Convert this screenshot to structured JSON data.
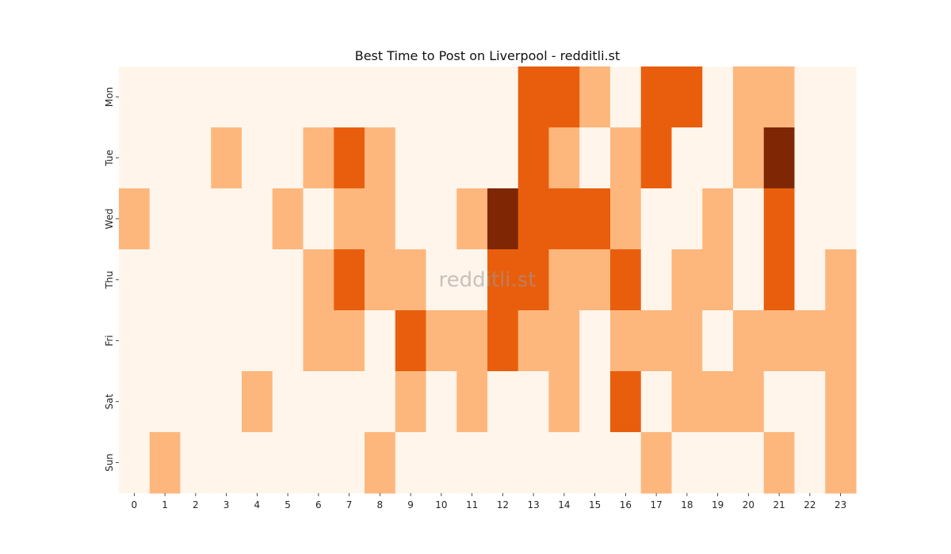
{
  "chart_data": {
    "type": "heatmap",
    "title": "Best Time to Post on Liverpool - redditli.st",
    "watermark": "redditli.st",
    "x_categories": [
      "0",
      "1",
      "2",
      "3",
      "4",
      "5",
      "6",
      "7",
      "8",
      "9",
      "10",
      "11",
      "12",
      "13",
      "14",
      "15",
      "16",
      "17",
      "18",
      "19",
      "20",
      "21",
      "22",
      "23"
    ],
    "y_categories": [
      "Mon",
      "Tue",
      "Wed",
      "Thu",
      "Fri",
      "Sat",
      "Sun"
    ],
    "colorscale": [
      "#fff5eb",
      "#fdb77d",
      "#e95e0d",
      "#7f2704"
    ],
    "values": [
      [
        0,
        0,
        0,
        0,
        0,
        0,
        0,
        0,
        0,
        0,
        0,
        0,
        0,
        2,
        2,
        1,
        0,
        2,
        2,
        0,
        1,
        1,
        0,
        0
      ],
      [
        0,
        0,
        0,
        1,
        0,
        0,
        1,
        2,
        1,
        0,
        0,
        0,
        0,
        2,
        1,
        0,
        1,
        2,
        0,
        0,
        1,
        3,
        0,
        0
      ],
      [
        1,
        0,
        0,
        0,
        0,
        1,
        0,
        1,
        1,
        0,
        0,
        1,
        3,
        2,
        2,
        2,
        1,
        0,
        0,
        1,
        0,
        2,
        0,
        0
      ],
      [
        0,
        0,
        0,
        0,
        0,
        0,
        1,
        2,
        1,
        1,
        0,
        0,
        2,
        2,
        1,
        1,
        2,
        0,
        1,
        1,
        0,
        2,
        0,
        1
      ],
      [
        0,
        0,
        0,
        0,
        0,
        0,
        1,
        1,
        0,
        2,
        1,
        1,
        2,
        1,
        1,
        0,
        1,
        1,
        1,
        0,
        1,
        1,
        1,
        1
      ],
      [
        0,
        0,
        0,
        0,
        1,
        0,
        0,
        0,
        0,
        1,
        0,
        1,
        0,
        0,
        1,
        0,
        2,
        0,
        1,
        1,
        1,
        0,
        0,
        1
      ],
      [
        0,
        1,
        0,
        0,
        0,
        0,
        0,
        0,
        1,
        0,
        0,
        0,
        0,
        0,
        0,
        0,
        0,
        1,
        0,
        0,
        0,
        1,
        0,
        1
      ]
    ]
  }
}
